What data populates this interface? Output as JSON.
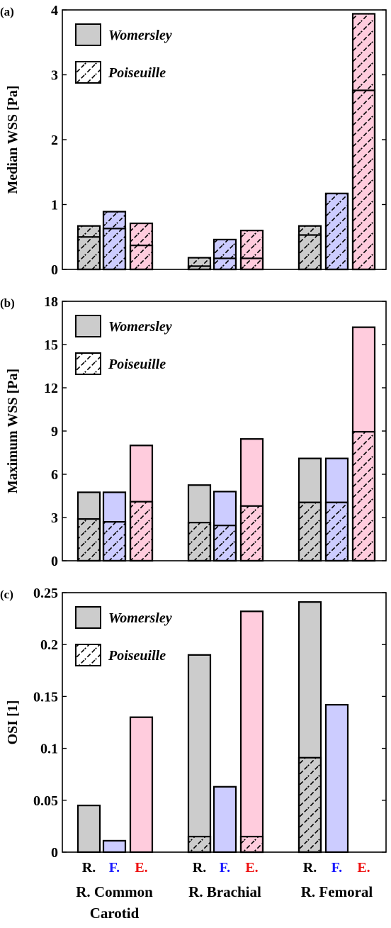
{
  "colors": {
    "R": "#cccccc",
    "F": "#ccccff",
    "E": "#ffccdd",
    "label_R": "#000000",
    "label_F": "#1a1aff",
    "label_E": "#ee1111",
    "stroke": "#000000"
  },
  "legend": {
    "womersley": "Womersley",
    "poiseuille": "Poiseuille"
  },
  "x_axis": {
    "groups": [
      {
        "lines": [
          "R. Common",
          "Carotid"
        ]
      },
      {
        "lines": [
          "R. Brachial"
        ]
      },
      {
        "lines": [
          "R. Femoral"
        ]
      }
    ],
    "bar_labels": [
      "R.",
      "F.",
      "E."
    ]
  },
  "chart_data": [
    {
      "panel_label": "(a)",
      "type": "bar",
      "stacking": "overlay",
      "ylabel": "Median WSS [Pa]",
      "ylim": [
        0,
        4
      ],
      "yticks": [
        0,
        1,
        2,
        3,
        4
      ],
      "yticklabels": [
        "0",
        "1",
        "2",
        "3",
        "4"
      ],
      "legend_position": "top-left",
      "categories": [
        "R. Common Carotid",
        "R. Brachial",
        "R. Femoral"
      ],
      "series": [
        {
          "name": "Womersley",
          "pattern": "solid",
          "values": [
            [
              0.5,
              0.63,
              0.37
            ],
            [
              0.05,
              0.17,
              0.17
            ],
            [
              0.53,
              1.17,
              2.76
            ]
          ]
        },
        {
          "name": "Poiseuille",
          "pattern": "hatch",
          "values": [
            [
              0.67,
              0.89,
              0.71
            ],
            [
              0.18,
              0.46,
              0.6
            ],
            [
              0.67,
              1.17,
              3.94
            ]
          ]
        }
      ]
    },
    {
      "panel_label": "(b)",
      "type": "bar",
      "stacking": "overlay",
      "ylabel": "Maximum WSS [Pa]",
      "ylim": [
        0,
        18
      ],
      "yticks": [
        0,
        3,
        6,
        9,
        12,
        15,
        18
      ],
      "yticklabels": [
        "0",
        "3",
        "6",
        "9",
        "12",
        "15",
        "18"
      ],
      "legend_position": "top-left",
      "categories": [
        "R. Common Carotid",
        "R. Brachial",
        "R. Femoral"
      ],
      "series": [
        {
          "name": "Womersley",
          "pattern": "solid",
          "values": [
            [
              4.75,
              4.75,
              8.0
            ],
            [
              5.25,
              4.8,
              8.45
            ],
            [
              7.1,
              7.1,
              16.2
            ]
          ]
        },
        {
          "name": "Poiseuille",
          "pattern": "hatch",
          "values": [
            [
              2.9,
              2.7,
              4.1
            ],
            [
              2.65,
              2.45,
              3.8
            ],
            [
              4.05,
              4.05,
              8.95
            ]
          ]
        }
      ]
    },
    {
      "panel_label": "(c)",
      "type": "bar",
      "stacking": "overlay",
      "ylabel": "OSI [1]",
      "ylim": [
        0,
        0.25
      ],
      "yticks": [
        0,
        0.05,
        0.1,
        0.15,
        0.2,
        0.25
      ],
      "yticklabels": [
        "0",
        "0.05",
        "0.1",
        "0.15",
        "0.2",
        "0.25"
      ],
      "legend_position": "top-left",
      "categories": [
        "R. Common Carotid",
        "R. Brachial",
        "R. Femoral"
      ],
      "series": [
        {
          "name": "Womersley",
          "pattern": "solid",
          "values": [
            [
              0.045,
              0.011,
              0.13
            ],
            [
              0.19,
              0.063,
              0.232
            ],
            [
              0.241,
              0.142,
              0.0
            ]
          ]
        },
        {
          "name": "Poiseuille",
          "pattern": "hatch",
          "values": [
            [
              0.0,
              0.0,
              0.0
            ],
            [
              0.015,
              0.0,
              0.015
            ],
            [
              0.091,
              0.0,
              0.0
            ]
          ]
        }
      ]
    }
  ]
}
